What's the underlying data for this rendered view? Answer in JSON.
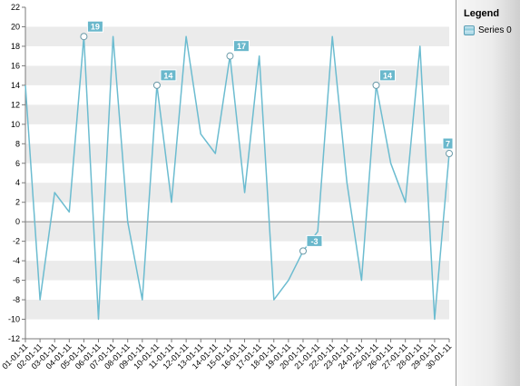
{
  "legend": {
    "title": "Legend",
    "items": [
      {
        "label": "Series 0"
      }
    ]
  },
  "colors": {
    "series": "#6cbcd0",
    "band": "#ebebeb",
    "label_bg": "#6ab8cc",
    "zero_line": "#8c8c8c"
  },
  "chart_data": {
    "type": "line",
    "categories": [
      "01-01-11",
      "02-01-11",
      "03-01-11",
      "04-01-11",
      "05-01-11",
      "06-01-11",
      "07-01-11",
      "08-01-11",
      "09-01-11",
      "10-01-11",
      "11-01-11",
      "12-01-11",
      "13-01-11",
      "14-01-11",
      "15-01-11",
      "16-01-11",
      "17-01-11",
      "18-01-11",
      "19-01-11",
      "20-01-11",
      "21-01-11",
      "22-01-11",
      "23-01-11",
      "24-01-11",
      "25-01-11",
      "26-01-11",
      "27-01-11",
      "28-01-11",
      "29-01-11",
      "30-01-11"
    ],
    "series": [
      {
        "name": "Series 0",
        "values": [
          14,
          -8,
          3,
          1,
          19,
          -10,
          19,
          0,
          -8,
          14,
          2,
          19,
          9,
          7,
          17,
          3,
          17,
          -8,
          -6,
          -3,
          -1,
          19,
          4,
          -6,
          14,
          6,
          2,
          18,
          -10,
          7
        ]
      }
    ],
    "labeled_points": [
      4,
      9,
      14,
      19,
      24,
      29
    ],
    "ylim": [
      -12,
      22
    ],
    "ytick_step": 2,
    "grid": "alternating horizontal bands",
    "legend_position": "right"
  }
}
